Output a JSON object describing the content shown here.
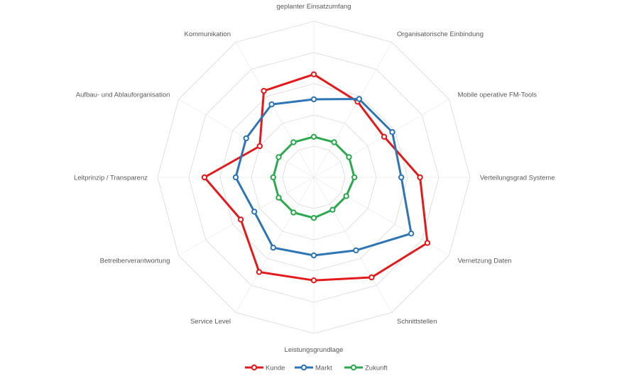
{
  "chart_data": {
    "type": "radar",
    "title": "",
    "categories": [
      "geplanter Einsatzumfang",
      "Organisatorische Einbindung",
      "Mobile operative FM-Tools",
      "Verteilungsgrad Systeme",
      "Vernetzung Daten",
      "Schnittstellen",
      "Leistungsgrundlage",
      "Service Level",
      "Betreiberverantwortung",
      "Leitprinzip / Transparenz",
      "Aufbau- und Ablauforganisation",
      "Kommunikation"
    ],
    "range": [
      0,
      5
    ],
    "rings": 5,
    "grid": true,
    "legend_position": "bottom",
    "series": [
      {
        "name": "Kunde",
        "color": "#e31a1c",
        "values": [
          3.3,
          2.8,
          2.6,
          3.4,
          4.2,
          3.7,
          3.3,
          3.5,
          2.7,
          3.5,
          2.0,
          3.2
        ]
      },
      {
        "name": "Markt",
        "color": "#2e75b6",
        "values": [
          2.5,
          2.9,
          2.9,
          2.8,
          3.6,
          2.7,
          2.5,
          2.6,
          2.2,
          2.5,
          2.5,
          2.7
        ]
      },
      {
        "name": "Zukunft",
        "color": "#2ca84e",
        "values": [
          1.3,
          1.3,
          1.3,
          1.3,
          1.2,
          1.2,
          1.3,
          1.3,
          1.3,
          1.3,
          1.3,
          1.3
        ]
      }
    ]
  }
}
